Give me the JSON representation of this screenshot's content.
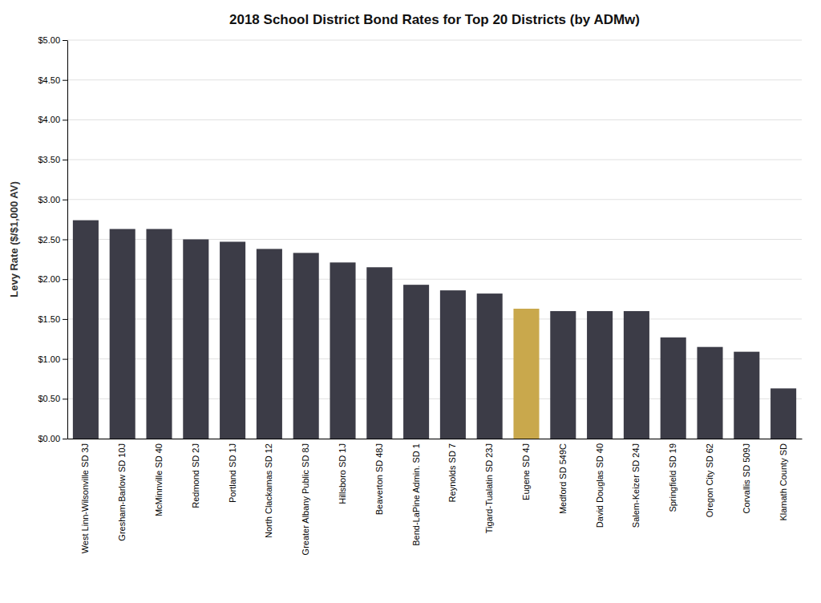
{
  "chart_data": {
    "type": "bar",
    "title": "2018 School District Bond Rates for Top 20 Districts (by ADMw)",
    "ylabel": "Levy Rate ($/$1,000 AV)",
    "categories": [
      "West Linn-Wilsonville SD 3J",
      "Gresham-Barlow SD 10J",
      "McMinnville SD 40",
      "Redmond SD 2J",
      "Portland SD 1J",
      "North Clackamas SD 12",
      "Greater Albany Public SD 8J",
      "Hillsboro SD 1J",
      "Beaverton SD 48J",
      "Bend-LaPine Admin. SD 1",
      "Reynolds SD 7",
      "Tigard-Tualatin SD 23J",
      "Eugene SD 4J",
      "Medford SD 549C",
      "David Douglas SD 40",
      "Salem-Keizer SD 24J",
      "Springfield SD 19",
      "Oregon City SD 62",
      "Corvallis SD 509J",
      "Klamath County SD"
    ],
    "values": [
      2.74,
      2.63,
      2.63,
      2.5,
      2.47,
      2.38,
      2.33,
      2.21,
      2.15,
      1.93,
      1.86,
      1.82,
      1.63,
      1.6,
      1.6,
      1.6,
      1.27,
      1.15,
      1.09,
      0.63
    ],
    "colors": [
      "#3c3c47",
      "#3c3c47",
      "#3c3c47",
      "#3c3c47",
      "#3c3c47",
      "#3c3c47",
      "#3c3c47",
      "#3c3c47",
      "#3c3c47",
      "#3c3c47",
      "#3c3c47",
      "#3c3c47",
      "#c9a84c",
      "#3c3c47",
      "#3c3c47",
      "#3c3c47",
      "#3c3c47",
      "#3c3c47",
      "#3c3c47",
      "#3c3c47"
    ],
    "ylim": [
      0,
      5.0
    ],
    "yticks": [
      {
        "value": 0.0,
        "label": "$0.00"
      },
      {
        "value": 0.5,
        "label": "$0.50"
      },
      {
        "value": 1.0,
        "label": "$1.00"
      },
      {
        "value": 1.5,
        "label": "$1.50"
      },
      {
        "value": 2.0,
        "label": "$2.00"
      },
      {
        "value": 2.5,
        "label": "$2.50"
      },
      {
        "value": 3.0,
        "label": "$3.00"
      },
      {
        "value": 3.5,
        "label": "$3.50"
      },
      {
        "value": 4.0,
        "label": "$4.00"
      },
      {
        "value": 4.5,
        "label": "$4.50"
      },
      {
        "value": 5.0,
        "label": "$5.00"
      }
    ],
    "grid": true
  }
}
